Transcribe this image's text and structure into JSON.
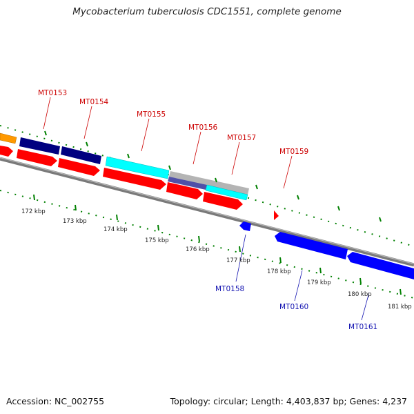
{
  "title": "Mycobacterium tuberculosis CDC1551, complete genome",
  "footer": {
    "accession": "Accession: NC_002755",
    "stats": "Topology: circular; Length: 4,403,837 bp; Genes: 4,237"
  },
  "scale_labels": [
    "172 kbp",
    "173 kbp",
    "174 kbp",
    "175 kbp",
    "176 kbp",
    "177 kbp",
    "178 kbp",
    "179 kbp",
    "180 kbp",
    "181 kbp"
  ],
  "gene_labels_forward": [
    "MT0153",
    "MT0154",
    "MT0155",
    "MT0156",
    "MT0157",
    "MT0159"
  ],
  "gene_labels_reverse": [
    "MT0158",
    "MT0160",
    "MT0161"
  ],
  "colors": {
    "forward_cds": "#ff0000",
    "reverse_cds": "#0000ff",
    "navy": "#000080",
    "cyan": "#00ffff",
    "orange": "#ff9900",
    "gray": "#b0b0b0",
    "purple": "#5050a8",
    "backbone": "#808080",
    "tick": "#008000"
  }
}
